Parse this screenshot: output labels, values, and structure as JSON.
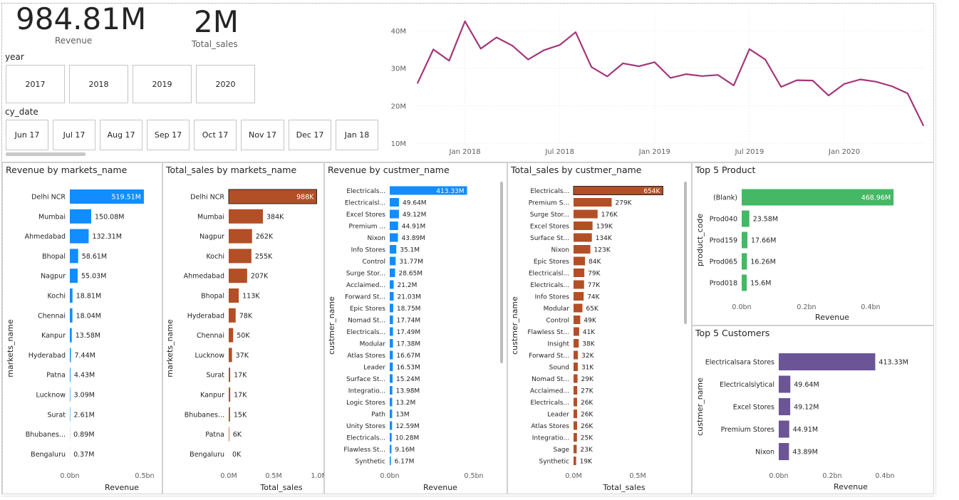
{
  "kpis": {
    "revenue_value": "984.81M",
    "revenue_label": "Revenue",
    "sales_value": "2M",
    "sales_label": "Total_sales"
  },
  "slicers": {
    "year_title": "year",
    "years": [
      "2017",
      "2018",
      "2019",
      "2020"
    ],
    "cy_date_title": "cy_date",
    "months": [
      "Jun 17",
      "Jul 17",
      "Aug 17",
      "Sep 17",
      "Oct 17",
      "Nov 17",
      "Dec 17",
      "Jan 18"
    ]
  },
  "colors": {
    "blue": "#118dff",
    "brown": "#b34f26",
    "green": "#44b865",
    "purple": "#6b5596",
    "line": "#a4357a"
  },
  "chart_data": [
    {
      "id": "trend",
      "type": "line",
      "x": [
        "Oct 2017",
        "Nov 2017",
        "Dec 2017",
        "Jan 2018",
        "Feb 2018",
        "Mar 2018",
        "Apr 2018",
        "May 2018",
        "Jun 2018",
        "Jul 2018",
        "Aug 2018",
        "Sep 2018",
        "Oct 2018",
        "Nov 2018",
        "Dec 2018",
        "Jan 2019",
        "Feb 2019",
        "Mar 2019",
        "Apr 2019",
        "May 2019",
        "Jun 2019",
        "Jul 2019",
        "Aug 2019",
        "Sep 2019",
        "Oct 2019",
        "Nov 2019",
        "Dec 2019",
        "Jan 2020",
        "Feb 2020",
        "Mar 2020",
        "Apr 2020",
        "May 2020",
        "Jun 2020"
      ],
      "values": [
        26.0,
        35.0,
        32.0,
        42.5,
        35.2,
        38.2,
        36.0,
        32.3,
        34.8,
        36.2,
        39.6,
        30.3,
        27.8,
        31.3,
        30.5,
        31.6,
        27.4,
        28.4,
        27.9,
        28.2,
        25.4,
        35.1,
        32.3,
        25.0,
        26.8,
        26.7,
        22.7,
        25.8,
        27.0,
        26.4,
        25.2,
        23.3,
        14.7
      ],
      "xticks": [
        "Jan 2018",
        "Jul 2018",
        "Jan 2019",
        "Jul 2019",
        "Jan 2020"
      ],
      "yticks": [
        "10M",
        "20M",
        "30M",
        "40M"
      ],
      "ylim": [
        10,
        44
      ],
      "grid": true
    },
    {
      "id": "rev_markets",
      "type": "bar",
      "title": "Revenue by markets_name",
      "xlabel": "Revenue",
      "ylabel": "markets_name",
      "categories": [
        "Delhi NCR",
        "Mumbai",
        "Ahmedabad",
        "Bhopal",
        "Nagpur",
        "Kochi",
        "Chennai",
        "Kanpur",
        "Hyderabad",
        "Patna",
        "Lucknow",
        "Surat",
        "Bhubanes...",
        "Bengaluru"
      ],
      "values": [
        519.51,
        150.08,
        132.31,
        58.61,
        55.03,
        18.81,
        18.04,
        13.58,
        7.44,
        4.43,
        3.09,
        2.61,
        0.89,
        0.37
      ],
      "labels": [
        "519.51M",
        "150.08M",
        "132.31M",
        "58.61M",
        "55.03M",
        "18.81M",
        "18.04M",
        "13.58M",
        "7.44M",
        "4.43M",
        "3.09M",
        "2.61M",
        "0.89M",
        "0.37M"
      ],
      "xticks": [
        "0.0bn",
        "0.5bn"
      ],
      "xmax": 555
    },
    {
      "id": "sales_markets",
      "type": "bar",
      "title": "Total_sales by markets_name",
      "xlabel": "Total_sales",
      "ylabel": "markets_name",
      "categories": [
        "Delhi NCR",
        "Mumbai",
        "Nagpur",
        "Kochi",
        "Ahmedabad",
        "Bhopal",
        "Hyderabad",
        "Chennai",
        "Lucknow",
        "Surat",
        "Kanpur",
        "Bhubanes...",
        "Patna",
        "Bengaluru"
      ],
      "values": [
        988,
        384,
        262,
        255,
        207,
        113,
        78,
        50,
        37,
        17,
        17,
        15,
        6,
        0
      ],
      "labels": [
        "988K",
        "384K",
        "262K",
        "255K",
        "207K",
        "113K",
        "78K",
        "50K",
        "37K",
        "17K",
        "17K",
        "15K",
        "6K",
        "0K"
      ],
      "xticks": [
        "0.0M",
        "0.5M",
        "1.0M"
      ],
      "xmax": 1000
    },
    {
      "id": "rev_customers",
      "type": "bar",
      "title": "Revenue by custmer_name",
      "xlabel": "Revenue",
      "ylabel": "custmer_name",
      "categories": [
        "Electricals...",
        "Electricalsl...",
        "Excel Stores",
        "Premium ...",
        "Nixon",
        "Info Stores",
        "Control",
        "Surge Stor...",
        "Acclaimed...",
        "Forward St...",
        "Epic Stores",
        "Nomad St...",
        "Electricals...",
        "Modular",
        "Atlas Stores",
        "Leader",
        "Surface St...",
        "Integratio...",
        "Logic Stores",
        "Path",
        "Unity Stores",
        "Electricals...",
        "Flawless St...",
        "Synthetic"
      ],
      "values": [
        413.33,
        49.64,
        49.12,
        44.91,
        43.89,
        35.1,
        31.77,
        28.65,
        21.2,
        21.03,
        18.75,
        17.74,
        17.49,
        17.38,
        16.67,
        16.53,
        15.24,
        13.98,
        13.2,
        13,
        12.59,
        10.28,
        9.16,
        6.17
      ],
      "labels": [
        "413.33M",
        "49.64M",
        "49.12M",
        "44.91M",
        "43.89M",
        "35.1M",
        "31.77M",
        "28.65M",
        "21.2M",
        "21.03M",
        "18.75M",
        "17.74M",
        "17.49M",
        "17.38M",
        "16.67M",
        "16.53M",
        "15.24M",
        "13.98M",
        "13.2M",
        "13M",
        "12.59M",
        "10.28M",
        "9.16M",
        "6.17M"
      ],
      "xticks": [
        "0.0bn",
        "0.5bn"
      ],
      "xmax": 514
    },
    {
      "id": "sales_customers",
      "type": "bar",
      "title": "Total_sales by custmer_name",
      "xlabel": "Total_sales",
      "ylabel": "custmer_name",
      "categories": [
        "Electricals...",
        "Premium S...",
        "Surge Stor...",
        "Excel Stores",
        "Surface St...",
        "Nixon",
        "Epic Stores",
        "Electricalsl...",
        "Electricals...",
        "Info Stores",
        "Modular",
        "Control",
        "Flawless St...",
        "Insight",
        "Forward St...",
        "Sound",
        "Nomad St...",
        "Acclaimed...",
        "Electricals...",
        "Leader",
        "Atlas Stores",
        "Integratio...",
        "Sage",
        "Synthetic"
      ],
      "values": [
        654,
        279,
        176,
        139,
        134,
        123,
        84,
        79,
        77,
        74,
        65,
        49,
        41,
        38,
        32,
        31,
        29,
        27,
        26,
        26,
        26,
        25,
        23,
        19
      ],
      "labels": [
        "654K",
        "279K",
        "176K",
        "139K",
        "134K",
        "123K",
        "84K",
        "79K",
        "77K",
        "74K",
        "65K",
        "49K",
        "41K",
        "38K",
        "32K",
        "31K",
        "29K",
        "27K",
        "26K",
        "26K",
        "26K",
        "25K",
        "23K",
        "19K"
      ],
      "xticks": [
        "0.0M",
        "0.5M"
      ],
      "xmax": 730
    },
    {
      "id": "top_products",
      "type": "bar",
      "title": "Top 5 Product",
      "xlabel": "Revenue",
      "ylabel": "product_code",
      "categories": [
        "(Blank)",
        "Prod040",
        "Prod159",
        "Prod065",
        "Prod018"
      ],
      "values": [
        468.96,
        23.58,
        17.66,
        16.26,
        15.6
      ],
      "labels": [
        "468.96M",
        "23.58M",
        "17.66M",
        "16.26M",
        "15.6M"
      ],
      "xticks": [
        "0.0bn",
        "0.2bn",
        "0.4bn"
      ],
      "xmax": 550
    },
    {
      "id": "top_customers",
      "type": "bar",
      "title": "Top 5 Customers",
      "xlabel": "Revenue",
      "ylabel": "custmer_name",
      "categories": [
        "Electricalsara Stores",
        "Electricalslytical",
        "Excel Stores",
        "Premium Stores",
        "Nixon"
      ],
      "values": [
        413.33,
        49.64,
        49.12,
        44.91,
        43.89
      ],
      "labels": [
        "413.33M",
        "49.64M",
        "49.12M",
        "44.91M",
        "43.89M"
      ],
      "xticks": [
        "0.0bn",
        "0.2bn",
        "0.4bn"
      ],
      "xmax": 470
    }
  ]
}
